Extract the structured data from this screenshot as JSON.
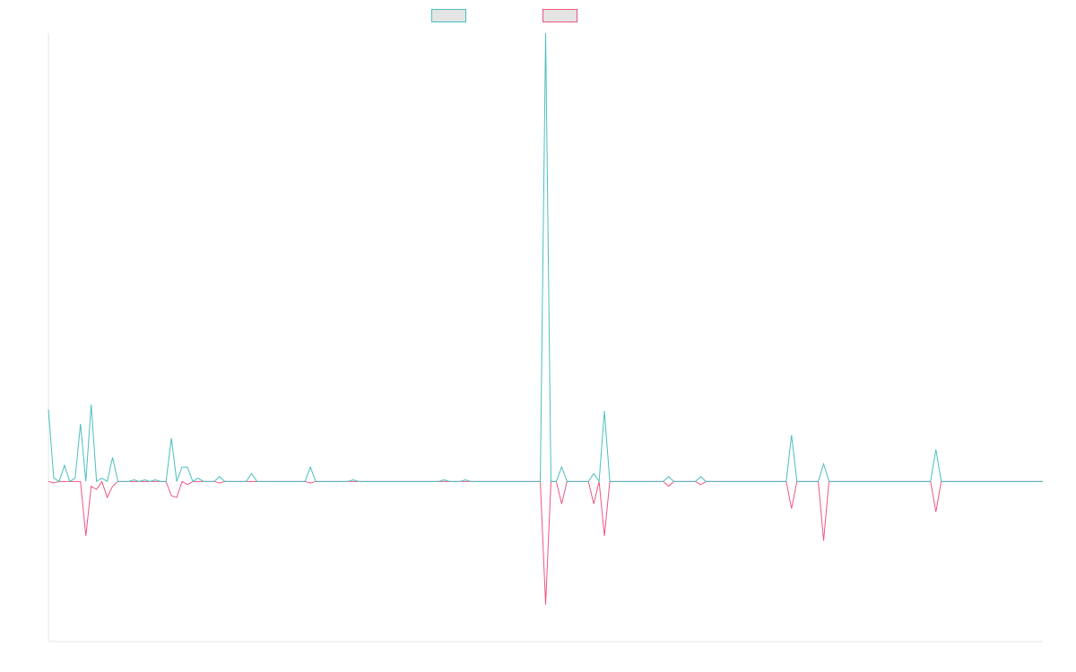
{
  "chart_data": {
    "type": "line",
    "title": "",
    "xlabel": "",
    "ylabel": "",
    "x_range": [
      0,
      186
    ],
    "ylim": [
      -1.0,
      2.8
    ],
    "grid": false,
    "legend": "top-center",
    "series": [
      {
        "color": "#4bbfbf",
        "points": [
          [
            0,
            0.45
          ],
          [
            1,
            0.02
          ],
          [
            2,
            0
          ],
          [
            3,
            0.1
          ],
          [
            4,
            0
          ],
          [
            5,
            0.02
          ],
          [
            6,
            0.36
          ],
          [
            7,
            0
          ],
          [
            8,
            0.48
          ],
          [
            9,
            0
          ],
          [
            10,
            0.02
          ],
          [
            11,
            0
          ],
          [
            12,
            0.15
          ],
          [
            13,
            0
          ],
          [
            14,
            0
          ],
          [
            15,
            0
          ],
          [
            16,
            0.01
          ],
          [
            17,
            0
          ],
          [
            18,
            0.01
          ],
          [
            19,
            0
          ],
          [
            20,
            0.01
          ],
          [
            21,
            0
          ],
          [
            22,
            0
          ],
          [
            23,
            0.27
          ],
          [
            24,
            0
          ],
          [
            25,
            0.09
          ],
          [
            26,
            0.09
          ],
          [
            27,
            0
          ],
          [
            28,
            0.02
          ],
          [
            29,
            0
          ],
          [
            30,
            0
          ],
          [
            31,
            0
          ],
          [
            32,
            0.03
          ],
          [
            33,
            0
          ],
          [
            34,
            0
          ],
          [
            35,
            0
          ],
          [
            36,
            0
          ],
          [
            37,
            0
          ],
          [
            38,
            0.05
          ],
          [
            39,
            0
          ],
          [
            40,
            0
          ],
          [
            41,
            0
          ],
          [
            42,
            0
          ],
          [
            43,
            0
          ],
          [
            44,
            0
          ],
          [
            45,
            0
          ],
          [
            46,
            0
          ],
          [
            47,
            0
          ],
          [
            48,
            0
          ],
          [
            49,
            0.09
          ],
          [
            50,
            0
          ],
          [
            51,
            0
          ],
          [
            52,
            0
          ],
          [
            53,
            0
          ],
          [
            54,
            0
          ],
          [
            55,
            0
          ],
          [
            56,
            0
          ],
          [
            57,
            0.01
          ],
          [
            58,
            0
          ],
          [
            59,
            0
          ],
          [
            60,
            0
          ],
          [
            61,
            0
          ],
          [
            62,
            0
          ],
          [
            63,
            0
          ],
          [
            64,
            0
          ],
          [
            65,
            0
          ],
          [
            66,
            0
          ],
          [
            67,
            0
          ],
          [
            68,
            0
          ],
          [
            69,
            0
          ],
          [
            70,
            0
          ],
          [
            71,
            0
          ],
          [
            72,
            0
          ],
          [
            73,
            0
          ],
          [
            74,
            0.01
          ],
          [
            75,
            0
          ],
          [
            76,
            0
          ],
          [
            77,
            0
          ],
          [
            78,
            0.01
          ],
          [
            79,
            0
          ],
          [
            80,
            0
          ],
          [
            81,
            0
          ],
          [
            82,
            0
          ],
          [
            83,
            0
          ],
          [
            84,
            0
          ],
          [
            85,
            0
          ],
          [
            86,
            0
          ],
          [
            87,
            0
          ],
          [
            88,
            0
          ],
          [
            89,
            0
          ],
          [
            90,
            0
          ],
          [
            91,
            0
          ],
          [
            92,
            0
          ],
          [
            93,
            2.8
          ],
          [
            94,
            0
          ],
          [
            95,
            0
          ],
          [
            96,
            0.09
          ],
          [
            97,
            0
          ],
          [
            98,
            0
          ],
          [
            99,
            0
          ],
          [
            100,
            0
          ],
          [
            101,
            0
          ],
          [
            102,
            0.05
          ],
          [
            103,
            0
          ],
          [
            104,
            0.44
          ],
          [
            105,
            0
          ],
          [
            106,
            0
          ],
          [
            107,
            0
          ],
          [
            108,
            0
          ],
          [
            109,
            0
          ],
          [
            110,
            0
          ],
          [
            111,
            0
          ],
          [
            112,
            0
          ],
          [
            113,
            0
          ],
          [
            114,
            0
          ],
          [
            115,
            0
          ],
          [
            116,
            0.03
          ],
          [
            117,
            0
          ],
          [
            118,
            0
          ],
          [
            119,
            0
          ],
          [
            120,
            0
          ],
          [
            121,
            0
          ],
          [
            122,
            0.03
          ],
          [
            123,
            0
          ],
          [
            124,
            0
          ],
          [
            125,
            0
          ],
          [
            126,
            0
          ],
          [
            127,
            0
          ],
          [
            128,
            0
          ],
          [
            129,
            0
          ],
          [
            130,
            0
          ],
          [
            131,
            0
          ],
          [
            132,
            0
          ],
          [
            133,
            0
          ],
          [
            134,
            0
          ],
          [
            135,
            0
          ],
          [
            136,
            0
          ],
          [
            137,
            0
          ],
          [
            138,
            0
          ],
          [
            139,
            0.29
          ],
          [
            140,
            0
          ],
          [
            141,
            0
          ],
          [
            142,
            0
          ],
          [
            143,
            0
          ],
          [
            144,
            0
          ],
          [
            145,
            0.11
          ],
          [
            146,
            0
          ],
          [
            147,
            0
          ],
          [
            148,
            0
          ],
          [
            149,
            0
          ],
          [
            150,
            0
          ],
          [
            151,
            0
          ],
          [
            152,
            0
          ],
          [
            153,
            0
          ],
          [
            154,
            0
          ],
          [
            155,
            0
          ],
          [
            156,
            0
          ],
          [
            157,
            0
          ],
          [
            158,
            0
          ],
          [
            159,
            0
          ],
          [
            160,
            0
          ],
          [
            161,
            0
          ],
          [
            162,
            0
          ],
          [
            163,
            0
          ],
          [
            164,
            0
          ],
          [
            165,
            0
          ],
          [
            166,
            0.2
          ],
          [
            167,
            0
          ],
          [
            186,
            0
          ]
        ]
      },
      {
        "color": "#f0557f",
        "points": [
          [
            0,
            0
          ],
          [
            1,
            -0.01
          ],
          [
            2,
            0
          ],
          [
            3,
            0
          ],
          [
            4,
            0
          ],
          [
            5,
            0
          ],
          [
            6,
            0
          ],
          [
            7,
            -0.34
          ],
          [
            8,
            -0.03
          ],
          [
            9,
            -0.05
          ],
          [
            10,
            0
          ],
          [
            11,
            -0.1
          ],
          [
            12,
            -0.03
          ],
          [
            13,
            0
          ],
          [
            14,
            0
          ],
          [
            15,
            0
          ],
          [
            16,
            0
          ],
          [
            17,
            0
          ],
          [
            18,
            0
          ],
          [
            19,
            0
          ],
          [
            20,
            0
          ],
          [
            21,
            0
          ],
          [
            22,
            0
          ],
          [
            23,
            -0.09
          ],
          [
            24,
            -0.1
          ],
          [
            25,
            0
          ],
          [
            26,
            -0.02
          ],
          [
            27,
            0
          ],
          [
            28,
            0
          ],
          [
            29,
            0
          ],
          [
            30,
            0
          ],
          [
            31,
            0
          ],
          [
            32,
            -0.01
          ],
          [
            33,
            0
          ],
          [
            34,
            0
          ],
          [
            35,
            0
          ],
          [
            36,
            0
          ],
          [
            37,
            0
          ],
          [
            38,
            0
          ],
          [
            39,
            0
          ],
          [
            40,
            0
          ],
          [
            41,
            0
          ],
          [
            42,
            0
          ],
          [
            43,
            0
          ],
          [
            44,
            0
          ],
          [
            45,
            0
          ],
          [
            46,
            0
          ],
          [
            47,
            0
          ],
          [
            48,
            0
          ],
          [
            49,
            -0.01
          ],
          [
            50,
            0
          ],
          [
            51,
            0
          ],
          [
            52,
            0
          ],
          [
            53,
            0
          ],
          [
            54,
            0
          ],
          [
            55,
            0
          ],
          [
            56,
            0
          ],
          [
            57,
            0
          ],
          [
            58,
            0
          ],
          [
            59,
            0
          ],
          [
            60,
            0
          ],
          [
            61,
            0
          ],
          [
            62,
            0
          ],
          [
            63,
            0
          ],
          [
            64,
            0
          ],
          [
            65,
            0
          ],
          [
            66,
            0
          ],
          [
            67,
            0
          ],
          [
            68,
            0
          ],
          [
            69,
            0
          ],
          [
            70,
            0
          ],
          [
            71,
            0
          ],
          [
            72,
            0
          ],
          [
            73,
            0
          ],
          [
            74,
            0
          ],
          [
            75,
            0
          ],
          [
            76,
            0
          ],
          [
            77,
            0
          ],
          [
            78,
            0
          ],
          [
            79,
            0
          ],
          [
            80,
            0
          ],
          [
            81,
            0
          ],
          [
            82,
            0
          ],
          [
            83,
            0
          ],
          [
            84,
            0
          ],
          [
            85,
            0
          ],
          [
            86,
            0
          ],
          [
            87,
            0
          ],
          [
            88,
            0
          ],
          [
            89,
            0
          ],
          [
            90,
            0
          ],
          [
            91,
            0
          ],
          [
            92,
            0
          ],
          [
            93,
            -0.77
          ],
          [
            94,
            0
          ],
          [
            95,
            0
          ],
          [
            96,
            -0.14
          ],
          [
            97,
            0
          ],
          [
            98,
            0
          ],
          [
            99,
            0
          ],
          [
            100,
            0
          ],
          [
            101,
            0
          ],
          [
            102,
            -0.14
          ],
          [
            103,
            0
          ],
          [
            104,
            -0.34
          ],
          [
            105,
            0
          ],
          [
            106,
            0
          ],
          [
            107,
            0
          ],
          [
            108,
            0
          ],
          [
            109,
            0
          ],
          [
            110,
            0
          ],
          [
            111,
            0
          ],
          [
            112,
            0
          ],
          [
            113,
            0
          ],
          [
            114,
            0
          ],
          [
            115,
            0
          ],
          [
            116,
            -0.03
          ],
          [
            117,
            0
          ],
          [
            118,
            0
          ],
          [
            119,
            0
          ],
          [
            120,
            0
          ],
          [
            121,
            0
          ],
          [
            122,
            -0.02
          ],
          [
            123,
            0
          ],
          [
            124,
            0
          ],
          [
            125,
            0
          ],
          [
            126,
            0
          ],
          [
            127,
            0
          ],
          [
            128,
            0
          ],
          [
            129,
            0
          ],
          [
            130,
            0
          ],
          [
            131,
            0
          ],
          [
            132,
            0
          ],
          [
            133,
            0
          ],
          [
            134,
            0
          ],
          [
            135,
            0
          ],
          [
            136,
            0
          ],
          [
            137,
            0
          ],
          [
            138,
            0
          ],
          [
            139,
            -0.17
          ],
          [
            140,
            0
          ],
          [
            141,
            0
          ],
          [
            142,
            0
          ],
          [
            143,
            0
          ],
          [
            144,
            0
          ],
          [
            145,
            -0.37
          ],
          [
            146,
            0
          ],
          [
            147,
            0
          ],
          [
            148,
            0
          ],
          [
            149,
            0
          ],
          [
            150,
            0
          ],
          [
            151,
            0
          ],
          [
            152,
            0
          ],
          [
            153,
            0
          ],
          [
            154,
            0
          ],
          [
            155,
            0
          ],
          [
            156,
            0
          ],
          [
            157,
            0
          ],
          [
            158,
            0
          ],
          [
            159,
            0
          ],
          [
            160,
            0
          ],
          [
            161,
            0
          ],
          [
            162,
            0
          ],
          [
            163,
            0
          ],
          [
            164,
            0
          ],
          [
            165,
            0
          ],
          [
            166,
            -0.19
          ],
          [
            167,
            0
          ],
          [
            186,
            0
          ]
        ]
      }
    ]
  }
}
